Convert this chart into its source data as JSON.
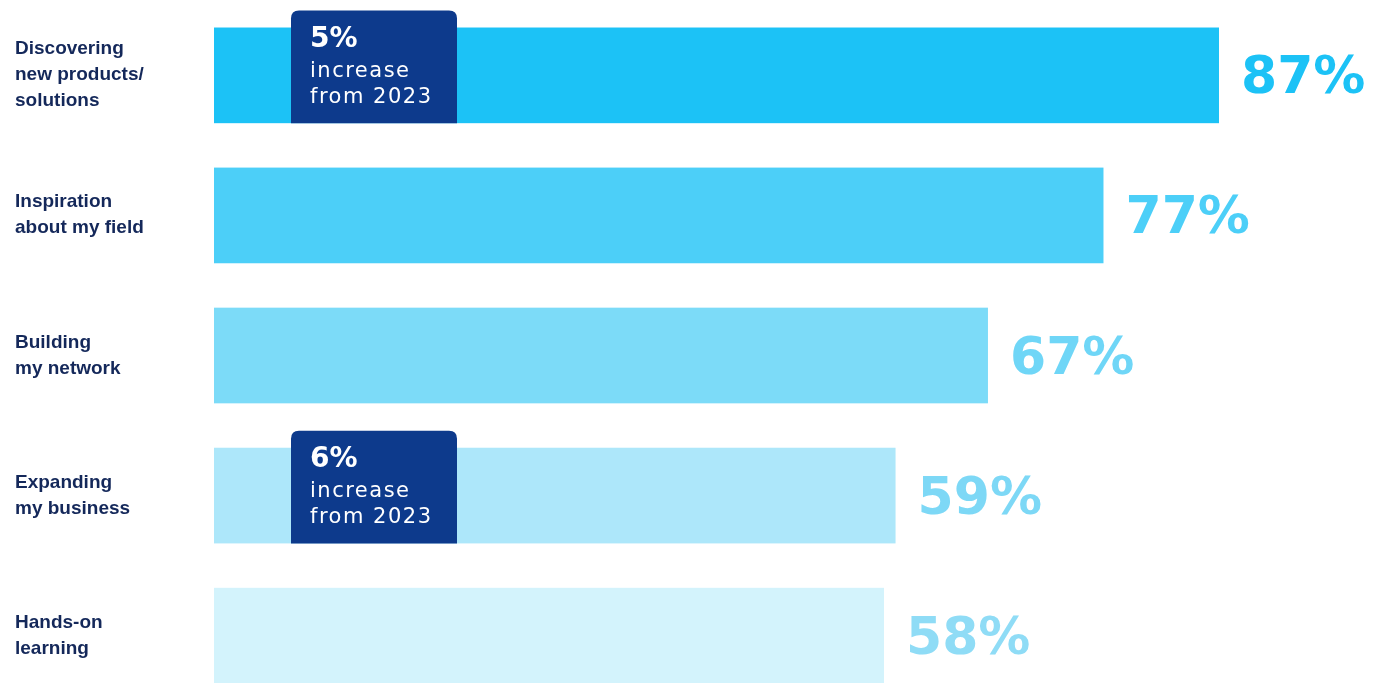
{
  "chart_data": {
    "type": "bar",
    "orientation": "horizontal",
    "categories": [
      "Discovering\nnew products/\nsolutions",
      "Inspiration\nabout my field",
      "Building\nmy network",
      "Expanding\nmy business",
      "Hands-on\nlearning"
    ],
    "values": [
      87,
      77,
      67,
      59,
      58
    ],
    "colors": [
      "#1cc2f6",
      "#4ccff8",
      "#7cdbf8",
      "#ade7fa",
      "#d3f3fc"
    ],
    "value_labels": [
      "87%",
      "77%",
      "67%",
      "59%",
      "58%"
    ],
    "annotations": [
      "5%\nincrease\nfrom 2023",
      "6%\nincrease\nfrom 2023"
    ]
  }
}
